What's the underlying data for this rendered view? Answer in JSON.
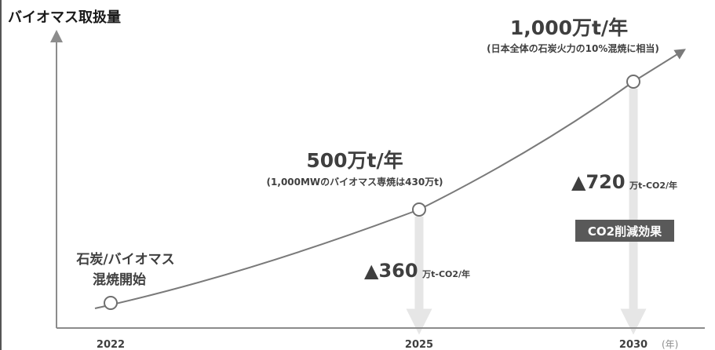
{
  "chart_data": {
    "type": "line",
    "title": "バイオマス取扱量",
    "x_unit": "(年)",
    "x_ticks": [
      "2022",
      "2025",
      "2030"
    ],
    "series": [
      {
        "points": [
          {
            "x": 2022,
            "y": 0
          },
          {
            "x": 2025,
            "y": 500
          },
          {
            "x": 2030,
            "y": 1000
          }
        ]
      }
    ],
    "annotations": [
      {
        "x": 2022,
        "lines": [
          "石炭/バイオマス",
          "混焼開始"
        ]
      },
      {
        "x": 2025,
        "value": "500万t/年",
        "note": "(1,000MWのバイオマス専焼は430万t)"
      },
      {
        "x": 2030,
        "value": "1,000万t/年",
        "note": "(日本全体の石炭火力の10%混焼に相当)"
      }
    ],
    "reductions": [
      {
        "x": 2025,
        "value": "▲360",
        "unit": "万t-CO2/年"
      },
      {
        "x": 2030,
        "value": "▲720",
        "unit": "万t-CO2/年"
      }
    ],
    "badge": "CO2削減効果",
    "colors": {
      "axis": "#8c8c8c",
      "line": "#7a7a7a",
      "text": "#3f3f3f",
      "title": "#1a1a1a",
      "bar": "#e6e6e6",
      "badge_bg": "#595959",
      "badge_text": "#ffffff",
      "marker_fill": "#ffffff"
    }
  }
}
